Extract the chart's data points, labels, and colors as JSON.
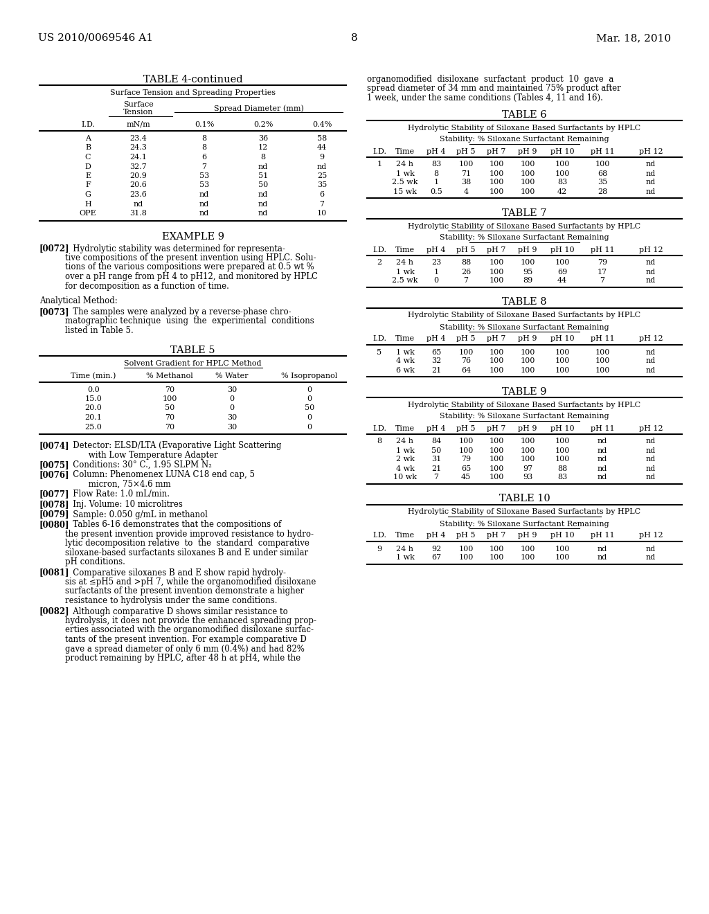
{
  "background_color": "#ffffff",
  "page_header_left": "US 2010/0069546 A1",
  "page_header_right": "Mar. 18, 2010",
  "page_number": "8",
  "table4_continued_title": "TABLE 4-continued",
  "table4_subtitle": "Surface Tension and Spreading Properties",
  "table4_col_headers": [
    "I.D.",
    "mN/m",
    "0.1%",
    "0.2%",
    "0.4%"
  ],
  "table4_data": [
    [
      "A",
      "23.4",
      "8",
      "36",
      "58"
    ],
    [
      "B",
      "24.3",
      "8",
      "12",
      "44"
    ],
    [
      "C",
      "24.1",
      "6",
      "8",
      "9"
    ],
    [
      "D",
      "32.7",
      "7",
      "nd",
      "nd"
    ],
    [
      "E",
      "20.9",
      "53",
      "51",
      "25"
    ],
    [
      "F",
      "20.6",
      "53",
      "50",
      "35"
    ],
    [
      "G",
      "23.6",
      "nd",
      "nd",
      "6"
    ],
    [
      "H",
      "nd",
      "nd",
      "nd",
      "7"
    ],
    [
      "OPE",
      "31.8",
      "nd",
      "nd",
      "10"
    ]
  ],
  "example9_title": "EXAMPLE 9",
  "table5_title": "TABLE 5",
  "table5_subtitle": "Solvent Gradient for HPLC Method",
  "table5_headers": [
    "Time (min.)",
    "% Methanol",
    "% Water",
    "% Isopropanol"
  ],
  "table5_data": [
    [
      "0.0",
      "70",
      "30",
      "0"
    ],
    [
      "15.0",
      "100",
      "0",
      "0"
    ],
    [
      "20.0",
      "50",
      "0",
      "50"
    ],
    [
      "20.1",
      "70",
      "30",
      "0"
    ],
    [
      "25.0",
      "70",
      "30",
      "0"
    ]
  ],
  "right_col_text_line1": "organomodified  disiloxane  surfactant  product  10  gave  a",
  "right_col_text_line2": "spread diameter of 34 mm and maintained 75% product after",
  "right_col_text_line3": "1 week, under the same conditions (Tables 4, 11 and 16).",
  "table6_title": "TABLE 6",
  "table6_subtitle": "Hydrolytic Stability of Siloxane Based Surfactants by HPLC",
  "table6_subsubtitle": "Stability: % Siloxane Surfactant Remaining",
  "table6_headers": [
    "I.D.",
    "Time",
    "pH 4",
    "pH 5",
    "pH 7",
    "pH 9",
    "pH 10",
    "pH 11",
    "pH 12"
  ],
  "table6_data": [
    [
      "1",
      "24 h",
      "83",
      "100",
      "100",
      "100",
      "100",
      "100",
      "nd"
    ],
    [
      "",
      "1 wk",
      "8",
      "71",
      "100",
      "100",
      "100",
      "68",
      "nd"
    ],
    [
      "",
      "2.5 wk",
      "1",
      "38",
      "100",
      "100",
      "83",
      "35",
      "nd"
    ],
    [
      "",
      "15 wk",
      "0.5",
      "4",
      "100",
      "100",
      "42",
      "28",
      "nd"
    ]
  ],
  "table7_title": "TABLE 7",
  "table7_subtitle": "Hydrolytic Stability of Siloxane Based Surfactants by HPLC",
  "table7_subsubtitle": "Stability: % Siloxane Surfactant Remaining",
  "table7_headers": [
    "I.D.",
    "Time",
    "pH 4",
    "pH 5",
    "pH 7",
    "pH 9",
    "pH 10",
    "pH 11",
    "pH 12"
  ],
  "table7_data": [
    [
      "2",
      "24 h",
      "23",
      "88",
      "100",
      "100",
      "100",
      "79",
      "nd"
    ],
    [
      "",
      "1 wk",
      "1",
      "26",
      "100",
      "95",
      "69",
      "17",
      "nd"
    ],
    [
      "",
      "2.5 wk",
      "0",
      "7",
      "100",
      "89",
      "44",
      "7",
      "nd"
    ]
  ],
  "table8_title": "TABLE 8",
  "table8_subtitle": "Hydrolytic Stability of Siloxane Based Surfactants by HPLC",
  "table8_subsubtitle": "Stability: % Siloxane Surfactant Remaining",
  "table8_headers": [
    "I.D.",
    "Time",
    "pH 4",
    "pH 5",
    "pH 7",
    "pH 9",
    "pH 10",
    "pH 11",
    "pH 12"
  ],
  "table8_data": [
    [
      "5",
      "1 wk",
      "65",
      "100",
      "100",
      "100",
      "100",
      "100",
      "nd"
    ],
    [
      "",
      "4 wk",
      "32",
      "76",
      "100",
      "100",
      "100",
      "100",
      "nd"
    ],
    [
      "",
      "6 wk",
      "21",
      "64",
      "100",
      "100",
      "100",
      "100",
      "nd"
    ]
  ],
  "table9_title": "TABLE 9",
  "table9_subtitle": "Hydrolytic Stability of Siloxane Based Surfactants by HPLC",
  "table9_subsubtitle": "Stability: % Siloxane Surfactant Remaining",
  "table9_headers": [
    "I.D.",
    "Time",
    "pH 4",
    "pH 5",
    "pH 7",
    "pH 9",
    "pH 10",
    "pH 11",
    "pH 12"
  ],
  "table9_data": [
    [
      "8",
      "24 h",
      "84",
      "100",
      "100",
      "100",
      "100",
      "nd",
      "nd"
    ],
    [
      "",
      "1 wk",
      "50",
      "100",
      "100",
      "100",
      "100",
      "nd",
      "nd"
    ],
    [
      "",
      "2 wk",
      "31",
      "79",
      "100",
      "100",
      "100",
      "nd",
      "nd"
    ],
    [
      "",
      "4 wk",
      "21",
      "65",
      "100",
      "97",
      "88",
      "nd",
      "nd"
    ],
    [
      "",
      "10 wk",
      "7",
      "45",
      "100",
      "93",
      "83",
      "nd",
      "nd"
    ]
  ],
  "table10_title": "TABLE 10",
  "table10_subtitle": "Hydrolytic Stability of Siloxane Based Surfactants by HPLC",
  "table10_subsubtitle": "Stability: % Siloxane Surfactant Remaining",
  "table10_headers": [
    "I.D.",
    "Time",
    "pH 4",
    "pH 5",
    "pH 7",
    "pH 9",
    "pH 10",
    "pH 11",
    "pH 12"
  ],
  "table10_data": [
    [
      "9",
      "24 h",
      "92",
      "100",
      "100",
      "100",
      "100",
      "nd",
      "nd"
    ],
    [
      "",
      "1 wk",
      "67",
      "100",
      "100",
      "100",
      "100",
      "nd",
      "nd"
    ]
  ]
}
